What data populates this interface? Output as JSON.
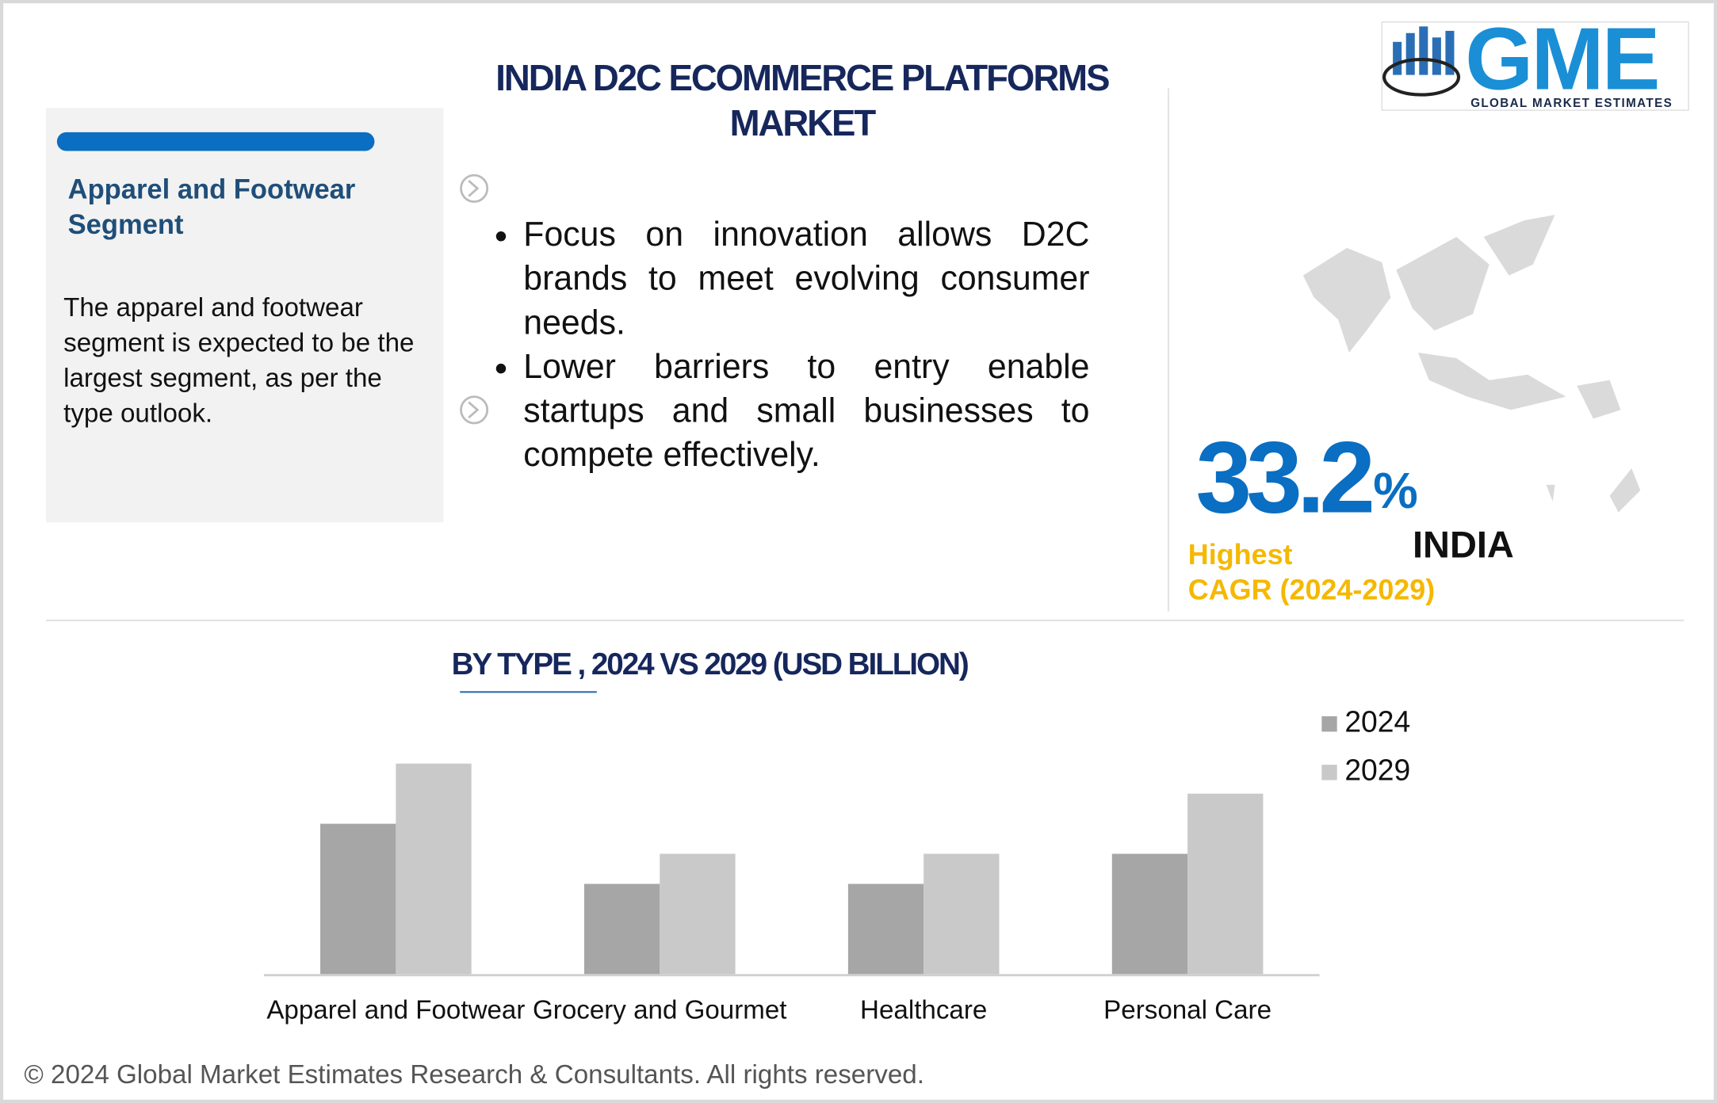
{
  "header": {
    "title": "INDIA D2C ECOMMERCE PLATFORMS MARKET",
    "logo_text": "GME",
    "logo_subtext": "GLOBAL MARKET ESTIMATES"
  },
  "segment_panel": {
    "title": "Apparel and Footwear Segment",
    "text": "The apparel and footwear segment is expected to be the largest segment, as per the type outlook."
  },
  "bullets": [
    "Focus on innovation allows D2C brands to meet evolving consumer needs.",
    "Lower barriers to entry enable startups and small businesses to compete effectively."
  ],
  "stat": {
    "value": "33.2",
    "unit": "%",
    "region": "INDIA",
    "label": [
      "Highest",
      "CAGR (2024-2029)"
    ]
  },
  "chart_data": {
    "type": "bar",
    "title": "BY TYPE , 2024 VS 2029 (USD BILLION)",
    "categories": [
      "Apparel and Footwear",
      "Grocery and Gourmet",
      "Healthcare",
      "Personal Care"
    ],
    "series": [
      {
        "name": "2024",
        "color": "#a6a6a6",
        "values": [
          5,
          3,
          3,
          4
        ]
      },
      {
        "name": "2029",
        "color": "#c9c9c9",
        "values": [
          7,
          4,
          4,
          6
        ]
      }
    ],
    "legend": "right"
  },
  "footer": "© 2024 Global Market Estimates Research & Consultants. All rights reserved."
}
